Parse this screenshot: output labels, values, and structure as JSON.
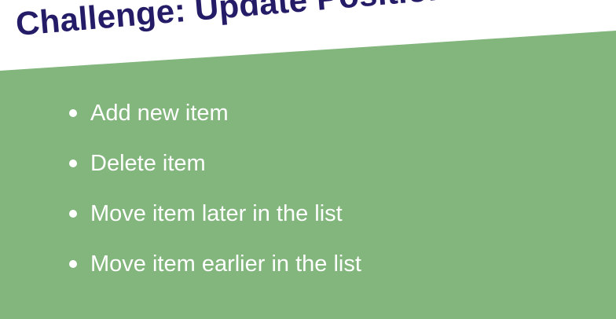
{
  "slide": {
    "title": "Challenge: Update Positions",
    "bullets": [
      "Add new item",
      "Delete item",
      "Move item later in the list",
      "Move item earlier in the list"
    ],
    "colors": {
      "background": "#ffffff",
      "panel": "#82b67d",
      "title": "#241c67",
      "bullet_text": "#ffffff"
    },
    "icons": {
      "bullet": "bullet-dot-icon"
    }
  }
}
